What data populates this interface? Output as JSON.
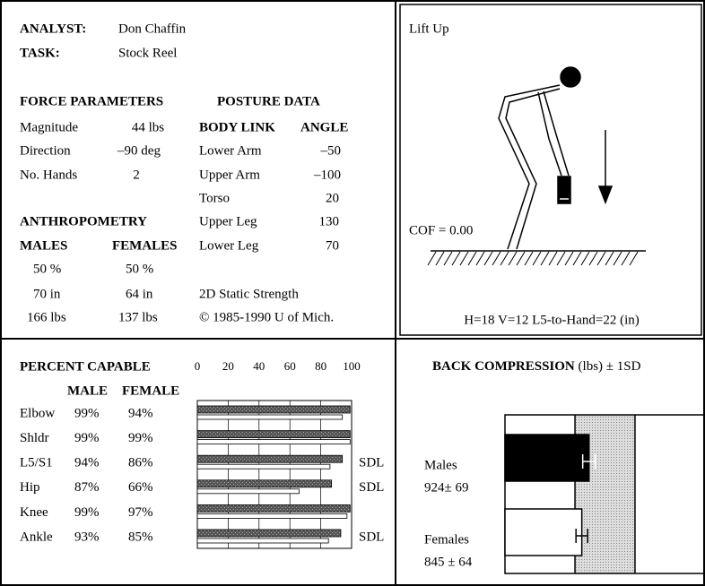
{
  "analysis": {
    "analyst_label": "ANALYST:",
    "analyst": "Don Chaffin",
    "task_label": "TASK:",
    "task": "Stock Reel",
    "force": {
      "heading": "FORCE PARAMETERS",
      "rows": [
        [
          "Magnitude",
          "44 lbs"
        ],
        [
          "Direction",
          "–90 deg"
        ],
        [
          "No. Hands",
          "2"
        ]
      ]
    },
    "posture": {
      "heading": "POSTURE DATA",
      "columns": [
        "BODY LINK",
        "ANGLE"
      ],
      "rows": [
        [
          "Lower Arm",
          "–50"
        ],
        [
          "Upper Arm",
          "–100"
        ],
        [
          "Torso",
          "20"
        ],
        [
          "Upper Leg",
          "130"
        ],
        [
          "Lower Leg",
          "70"
        ]
      ]
    },
    "anthropometry": {
      "heading": "ANTHROPOMETRY",
      "columns": [
        "MALES",
        "FEMALES"
      ],
      "rows": [
        [
          "50 %",
          "50 %"
        ],
        [
          "70  in",
          "64  in"
        ],
        [
          "166 lbs",
          "137  lbs"
        ]
      ]
    },
    "program": "2D Static Strength",
    "copyright": "© 1985-1990 U of Mich."
  },
  "posture_view": {
    "title": "Lift Up",
    "cof": "COF = 0.00",
    "caption": "H=18 V=12 L5-to-Hand=22 (in)"
  },
  "percent_capable": {
    "title": "PERCENT CAPABLE",
    "columns": [
      "MALE",
      "FEMALE"
    ],
    "xlim": [
      0,
      100
    ],
    "ticks": [
      0,
      20,
      40,
      60,
      80,
      100
    ],
    "rows": [
      {
        "joint": "Elbow",
        "male": {
          "value": 99,
          "label": "99%"
        },
        "female": {
          "value": 94,
          "label": "94%"
        }
      },
      {
        "joint": "Shldr",
        "male": {
          "value": 99,
          "label": "99%"
        },
        "female": {
          "value": 99,
          "label": "99%"
        }
      },
      {
        "joint": "L5/S1",
        "male": {
          "value": 94,
          "label": "94%"
        },
        "female": {
          "value": 86,
          "label": "86%"
        },
        "flag": "SDL"
      },
      {
        "joint": "Hip",
        "male": {
          "value": 87,
          "label": "87%"
        },
        "female": {
          "value": 66,
          "label": "66%"
        },
        "flag": "SDL"
      },
      {
        "joint": "Knee",
        "male": {
          "value": 99,
          "label": "99%"
        },
        "female": {
          "value": 97,
          "label": "97%"
        }
      },
      {
        "joint": "Ankle",
        "male": {
          "value": 93,
          "label": "93%"
        },
        "female": {
          "value": 85,
          "label": "85%"
        },
        "flag": "SDL"
      }
    ]
  },
  "back_compression": {
    "title": "BACK COMPRESSION",
    "subtitle": "(lbs)  ± 1SD",
    "xlim": [
      0,
      2200
    ],
    "limits": [
      770,
      1430
    ],
    "groups": [
      {
        "name": "Males",
        "value": 924,
        "sd": 69,
        "label": "924± 69",
        "color": "#000000"
      },
      {
        "name": "Females",
        "value": 845,
        "sd": 64,
        "label": "845 ± 64",
        "color": "#ffffff"
      }
    ]
  }
}
